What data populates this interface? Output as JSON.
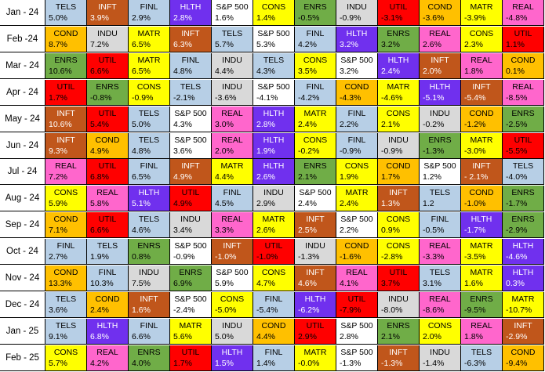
{
  "colors": {
    "TELS": "#b7cfe6",
    "INFT": "#c0561b",
    "FINL": "#b7cfe6",
    "HLTH": "#7030ee",
    "S&P 500": "#ffffff",
    "CONS": "#ffff00",
    "ENRS": "#70ad47",
    "INDU": "#d9d9d9",
    "UTIL": "#ff0000",
    "COND": "#ffc000",
    "MATR": "#ffff00",
    "REAL": "#ff66cc"
  },
  "text_colors": {
    "TELS": "#000000",
    "INFT": "#ffffff",
    "FINL": "#000000",
    "HLTH": "#ffffff",
    "S&P 500": "#000000",
    "CONS": "#000000",
    "ENRS": "#000000",
    "INDU": "#000000",
    "UTIL": "#000000",
    "COND": "#000000",
    "MATR": "#000000",
    "REAL": "#000000"
  },
  "chart_data": {
    "type": "table",
    "rows": [
      {
        "month": "Jan - 24",
        "cells": [
          [
            "TELS",
            "5.0%"
          ],
          [
            "INFT",
            "3.9%"
          ],
          [
            "FINL",
            "2.9%"
          ],
          [
            "HLTH",
            "2.8%"
          ],
          [
            "S&P 500",
            "1.6%"
          ],
          [
            "CONS",
            "1.4%"
          ],
          [
            "ENRS",
            "-0.5%"
          ],
          [
            "INDU",
            "-0.9%"
          ],
          [
            "UTIL",
            "-3.1%"
          ],
          [
            "COND",
            "-3.6%"
          ],
          [
            "MATR",
            "-3.9%"
          ],
          [
            "REAL",
            "-4.8%"
          ]
        ]
      },
      {
        "month": "Feb -24",
        "cells": [
          [
            "COND",
            "8.7%"
          ],
          [
            "INDU",
            "7.2%"
          ],
          [
            "MATR",
            "6.5%"
          ],
          [
            "INFT",
            "6.3%"
          ],
          [
            "TELS",
            "5.7%"
          ],
          [
            "S&P 500",
            "5.3%"
          ],
          [
            "FINL",
            "4.2%"
          ],
          [
            "HLTH",
            "3.2%"
          ],
          [
            "ENRS",
            "3.2%"
          ],
          [
            "REAL",
            "2.6%"
          ],
          [
            "CONS",
            "2.3%"
          ],
          [
            "UTIL",
            "1.1%"
          ]
        ]
      },
      {
        "month": "Mar - 24",
        "cells": [
          [
            "ENRS",
            "10.6%"
          ],
          [
            "UTIL",
            "6.6%"
          ],
          [
            "MATR",
            "6.5%"
          ],
          [
            "FINL",
            "4.8%"
          ],
          [
            "INDU",
            "4.4%"
          ],
          [
            "TELS",
            "4.3%"
          ],
          [
            "CONS",
            "3.5%"
          ],
          [
            "S&P 500",
            "3.2%"
          ],
          [
            "HLTH",
            "2.4%"
          ],
          [
            "INFT",
            "2.0%"
          ],
          [
            "REAL",
            "1.8%"
          ],
          [
            "COND",
            "0.1%"
          ]
        ]
      },
      {
        "month": "Apr - 24",
        "cells": [
          [
            "UTIL",
            "1.7%"
          ],
          [
            "ENRS",
            "-0.8%"
          ],
          [
            "CONS",
            "-0.9%"
          ],
          [
            "TELS",
            "-2.1%"
          ],
          [
            "INDU",
            "-3.6%"
          ],
          [
            "S&P 500",
            "-4.1%"
          ],
          [
            "FINL",
            "-4.2%"
          ],
          [
            "COND",
            "-4.3%"
          ],
          [
            "MATR",
            "-4.6%"
          ],
          [
            "HLTH",
            "-5.1%"
          ],
          [
            "INFT",
            "-5.4%"
          ],
          [
            "REAL",
            "-8.5%"
          ]
        ]
      },
      {
        "month": "May - 24",
        "cells": [
          [
            "INFT",
            "10.6%"
          ],
          [
            "UTIL",
            "5.4%"
          ],
          [
            "TELS",
            "5.0%"
          ],
          [
            "S&P 500",
            "4.3%"
          ],
          [
            "REAL",
            "3.0%"
          ],
          [
            "HLTH",
            "2.8%"
          ],
          [
            "MATR",
            "2.4%"
          ],
          [
            "FINL",
            "2.2%"
          ],
          [
            "CONS",
            "2.1%"
          ],
          [
            "INDU",
            "-0.2%"
          ],
          [
            "COND",
            "-1.2%"
          ],
          [
            "ENRS",
            "-2.5%"
          ]
        ]
      },
      {
        "month": "Jun - 24",
        "cells": [
          [
            "INFT",
            "9.3%"
          ],
          [
            "COND",
            "4.9%"
          ],
          [
            "TELS",
            "4.8%"
          ],
          [
            "S&P 500",
            "3.6%"
          ],
          [
            "REAL",
            "2.0%"
          ],
          [
            "HLTH",
            "1.9%"
          ],
          [
            "CONS",
            "-0.2%"
          ],
          [
            "FINL",
            "-0.9%"
          ],
          [
            "INDU",
            "-0.9%"
          ],
          [
            "ENRS",
            "-1.3%"
          ],
          [
            "MATR",
            "-3.0%"
          ],
          [
            "UTIL",
            "-5.5%"
          ]
        ]
      },
      {
        "month": "Jul - 24",
        "cells": [
          [
            "REAL",
            "7.2%"
          ],
          [
            "UTIL",
            "6.8%"
          ],
          [
            "FINL",
            "6.5%"
          ],
          [
            "INFT",
            "4.9%"
          ],
          [
            "MATR",
            "4.4%"
          ],
          [
            "HLTH",
            "2.6%"
          ],
          [
            "ENRS",
            "2.1%"
          ],
          [
            "CONS",
            "1.9%"
          ],
          [
            "COND",
            "1.7%"
          ],
          [
            "S&P 500",
            "1.2%"
          ],
          [
            "INFT",
            "- 2.1%"
          ],
          [
            "TELS",
            "-4.0%"
          ]
        ]
      },
      {
        "month": "Aug - 24",
        "cells": [
          [
            "CONS",
            "5.9%"
          ],
          [
            "REAL",
            "5.8%"
          ],
          [
            "HLTH",
            "5.1%"
          ],
          [
            "UTIL",
            "4.9%"
          ],
          [
            "FINL",
            "4.5%"
          ],
          [
            "INDU",
            "2.9%"
          ],
          [
            "S&P 500",
            "2.4%"
          ],
          [
            "MATR",
            "2.4%"
          ],
          [
            "INFT",
            "1.3%"
          ],
          [
            "TELS",
            "1.2"
          ],
          [
            "COND",
            "-1.0%"
          ],
          [
            "ENRS",
            "-1.7%"
          ]
        ]
      },
      {
        "month": "Sep - 24",
        "cells": [
          [
            "COND",
            "7.1%"
          ],
          [
            "UTIL",
            "6.6%"
          ],
          [
            "TELS",
            "4.6%"
          ],
          [
            "INDU",
            "3.4%"
          ],
          [
            "REAL",
            "3.3%"
          ],
          [
            "MATR",
            "2.6%"
          ],
          [
            "INFT",
            "2.5%"
          ],
          [
            "S&P 500",
            "2.2%"
          ],
          [
            "CONS",
            "0.9%"
          ],
          [
            "FINL",
            "-0.5%"
          ],
          [
            "HLTH",
            "-1.7%"
          ],
          [
            "ENRS",
            "-2.9%"
          ]
        ]
      },
      {
        "month": "Oct - 24",
        "cells": [
          [
            "FINL",
            "2.7%"
          ],
          [
            "TELS",
            "1.9%"
          ],
          [
            "ENRS",
            "0.8%"
          ],
          [
            "S&P 500",
            "-0.9%"
          ],
          [
            "INFT",
            "-1.0%"
          ],
          [
            "UTIL",
            "-1.0%"
          ],
          [
            "INDU",
            "-1.3%"
          ],
          [
            "COND",
            "-1.6%"
          ],
          [
            "CONS",
            "-2.8%"
          ],
          [
            "REAL",
            "-3.3%"
          ],
          [
            "MATR",
            "-3.5%"
          ],
          [
            "HLTH",
            "-4.6%"
          ]
        ]
      },
      {
        "month": "Nov - 24",
        "cells": [
          [
            "COND",
            "13.3%"
          ],
          [
            "FINL",
            "10.3%"
          ],
          [
            "INDU",
            "7.5%"
          ],
          [
            "ENRS",
            "6.9%"
          ],
          [
            "S&P 500",
            "5.9%"
          ],
          [
            "CONS",
            "4.7%"
          ],
          [
            "INFT",
            "4.6%"
          ],
          [
            "REAL",
            "4.1%"
          ],
          [
            "UTIL",
            "3.7%"
          ],
          [
            "TELS",
            "3.1%"
          ],
          [
            "MATR",
            "1.6%"
          ],
          [
            "HLTH",
            "0.3%"
          ]
        ]
      },
      {
        "month": "Dec - 24",
        "cells": [
          [
            "TELS",
            "3.6%"
          ],
          [
            "COND",
            "2.4%"
          ],
          [
            "INFT",
            "1.6%"
          ],
          [
            "S&P 500",
            "-2.4%"
          ],
          [
            "CONS",
            "-5.0%"
          ],
          [
            "FINL",
            "-5.4%"
          ],
          [
            "HLTH",
            "-6.2%"
          ],
          [
            "UTIL",
            "-7.9%"
          ],
          [
            "INDU",
            "-8.0%"
          ],
          [
            "REAL",
            "-8.6%"
          ],
          [
            "ENRS",
            "-9.5%"
          ],
          [
            "MATR",
            "-10.7%"
          ]
        ]
      },
      {
        "month": "Jan - 25",
        "cells": [
          [
            "TELS",
            "9.1%"
          ],
          [
            "HLTH",
            "6.8%"
          ],
          [
            "FINL",
            "6.6%"
          ],
          [
            "MATR",
            "5.6%"
          ],
          [
            "INDU",
            "5.0%"
          ],
          [
            "COND",
            "4.4%"
          ],
          [
            "UTIL",
            "2.9%"
          ],
          [
            "S&P 500",
            "2.8%"
          ],
          [
            "ENRS",
            "2.1%"
          ],
          [
            "CONS",
            "2.0%"
          ],
          [
            "REAL",
            "1.8%"
          ],
          [
            "INFT",
            "-2.9%"
          ]
        ]
      },
      {
        "month": "Feb - 25",
        "cells": [
          [
            "CONS",
            "5.7%"
          ],
          [
            "REAL",
            "4.2%"
          ],
          [
            "ENRS",
            "4.0%"
          ],
          [
            "UTIL",
            "1.7%"
          ],
          [
            "HLTH",
            "1.5%"
          ],
          [
            "FINL",
            "1.4%"
          ],
          [
            "MATR",
            "-0.0%"
          ],
          [
            "S&P 500",
            "-1.3%"
          ],
          [
            "INFT",
            "-1.3%"
          ],
          [
            "INDU",
            "-1.4%"
          ],
          [
            "TELS",
            "-6.3%"
          ],
          [
            "COND",
            "-9.4%"
          ]
        ]
      }
    ]
  }
}
